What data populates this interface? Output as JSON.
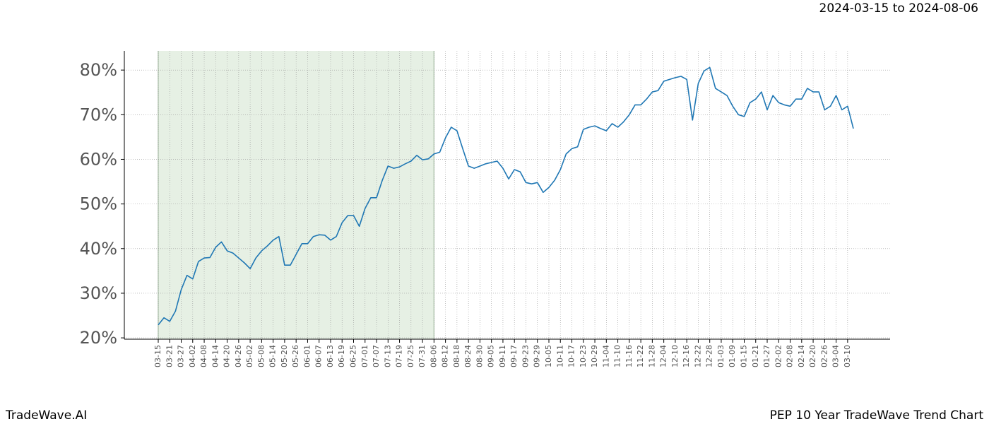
{
  "chart_data": {
    "type": "line",
    "date_range": "2024-03-15 to 2024-08-06",
    "brand": "TradeWave.AI",
    "title": "PEP 10 Year TradeWave Trend Chart",
    "categories": [
      "03-15",
      null,
      "03-21",
      null,
      "03-27",
      null,
      "04-02",
      null,
      "04-08",
      null,
      "04-14",
      null,
      "04-20",
      null,
      "04-26",
      null,
      "05-02",
      null,
      "05-08",
      null,
      "05-14",
      null,
      "05-20",
      null,
      "05-26",
      null,
      "06-01",
      null,
      "06-07",
      null,
      "06-13",
      null,
      "06-19",
      null,
      "06-25",
      null,
      "07-01",
      null,
      "07-07",
      null,
      "07-13",
      null,
      "07-19",
      null,
      "07-25",
      null,
      "07-31",
      null,
      "08-06",
      null,
      "08-12",
      null,
      "08-18",
      null,
      "08-24",
      null,
      "08-30",
      null,
      "09-05",
      null,
      "09-11",
      null,
      "09-17",
      null,
      "09-23",
      null,
      "09-29",
      null,
      "10-05",
      null,
      "10-11",
      null,
      "10-17",
      null,
      "10-23",
      null,
      "10-29",
      null,
      "11-04",
      null,
      "11-10",
      null,
      "11-16",
      null,
      "11-22",
      null,
      "11-28",
      null,
      "12-04",
      null,
      "12-10",
      null,
      "12-16",
      null,
      "12-22",
      null,
      "12-28",
      null,
      "01-03",
      null,
      "01-09",
      null,
      "01-15",
      null,
      "01-21",
      null,
      "01-27",
      null,
      "02-02",
      null,
      "02-08",
      null,
      "02-14",
      null,
      "02-20",
      null,
      "02-26",
      null,
      "03-04",
      null,
      "03-10",
      null
    ],
    "series": [
      {
        "color": "#1f77b4",
        "values": [
          22.9,
          24.5,
          23.7,
          26,
          30.8,
          34,
          33.2,
          37.1,
          37.9,
          38,
          40.3,
          41.5,
          39.5,
          39,
          37.9,
          36.8,
          35.5,
          37.9,
          39.5,
          40.6,
          41.9,
          42.7,
          36.3,
          36.3,
          38.7,
          41.1,
          41.1,
          42.7,
          43.1,
          43,
          41.9,
          42.7,
          45.8,
          47.4,
          47.4,
          45,
          49,
          51.4,
          51.4,
          55.3,
          58.5,
          58,
          58.3,
          59,
          59.6,
          60.9,
          59.9,
          60.1,
          61.2,
          61.6,
          64.8,
          67.2,
          66.4,
          62.4,
          58.5,
          58,
          58.5,
          59,
          59.3,
          59.6,
          58,
          55.6,
          57.7,
          57.2,
          54.8,
          54.5,
          54.8,
          52.6,
          53.7,
          55.3,
          57.7,
          61.2,
          62.4,
          62.8,
          66.7,
          67.2,
          67.5,
          66.9,
          66.4,
          68,
          67.2,
          68.4,
          70,
          72.2,
          72.2,
          73.5,
          75.1,
          75.4,
          77.5,
          77.9,
          78.3,
          78.6,
          77.9,
          68.8,
          77,
          79.8,
          80.6,
          75.9,
          75.1,
          74.3,
          71.9,
          70,
          69.6,
          72.7,
          73.5,
          75.1,
          71.1,
          74.3,
          72.7,
          72.2,
          71.9,
          73.5,
          73.5,
          75.9,
          75.1,
          75.1,
          71.1,
          71.9,
          74.3,
          71.1,
          71.9,
          66.9
        ]
      }
    ],
    "highlight": {
      "from": "03-15",
      "to": "08-06",
      "color": "#e6f0e4"
    },
    "ylim": [
      19.7,
      84.3
    ],
    "yticks": [
      {
        "value": 20,
        "label": "20%"
      },
      {
        "value": 30,
        "label": "30%"
      },
      {
        "value": 40,
        "label": "40%"
      },
      {
        "value": 50,
        "label": "50%"
      },
      {
        "value": 60,
        "label": "60%"
      },
      {
        "value": 70,
        "label": "70%"
      },
      {
        "value": 80,
        "label": "80%"
      }
    ],
    "grid": true
  }
}
